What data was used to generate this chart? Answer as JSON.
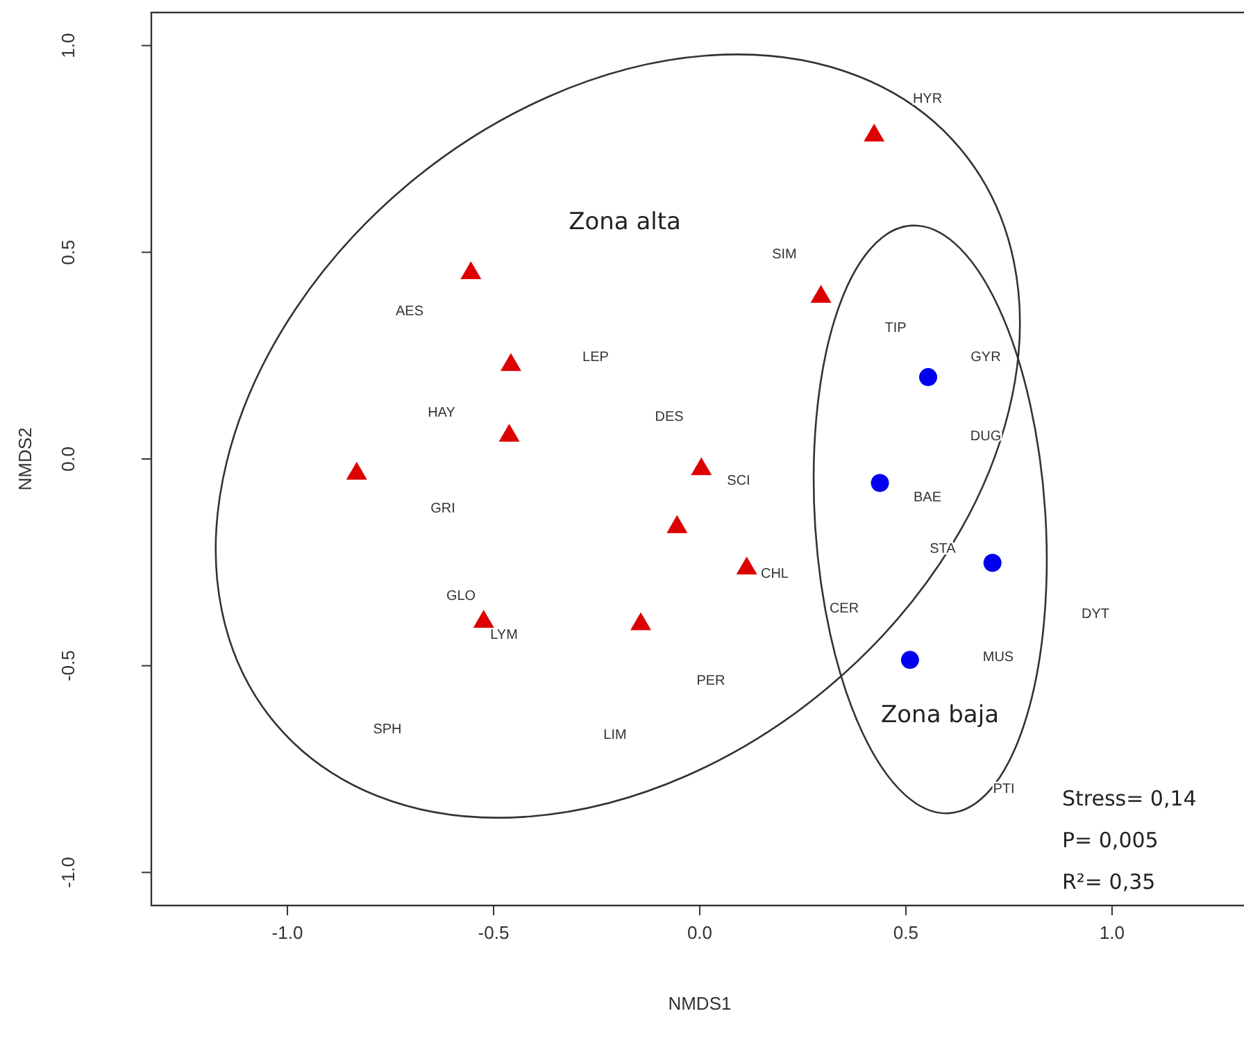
{
  "chart_data": {
    "type": "scatter",
    "xlabel": "NMDS1",
    "ylabel": "NMDS2",
    "xlim": [
      -1.33,
      1.32
    ],
    "ylim": [
      -1.08,
      1.08
    ],
    "xticks": [
      {
        "value": -1,
        "label": "-1.0"
      },
      {
        "value": -0.5,
        "label": "-0.5"
      },
      {
        "value": 0,
        "label": "0.0"
      },
      {
        "value": 0.5,
        "label": "0.5"
      },
      {
        "value": 1,
        "label": "1.0"
      }
    ],
    "yticks": [
      {
        "value": -1,
        "label": "-1.0"
      },
      {
        "value": -0.5,
        "label": "-0.5"
      },
      {
        "value": 0,
        "label": "0.0"
      },
      {
        "value": 0.5,
        "label": "0.5"
      },
      {
        "value": 1,
        "label": "1.0"
      }
    ],
    "series": [
      {
        "type": "scatter",
        "marker": "triangle",
        "color": "#dd0000",
        "x": [
          -0.555,
          -0.458,
          -0.462,
          -0.832,
          0.423,
          0.294,
          0.004,
          -0.055,
          0.114,
          -0.524,
          -0.143
        ],
        "values": [
          0.453,
          0.231,
          0.06,
          -0.032,
          0.786,
          0.396,
          -0.021,
          -0.161,
          -0.261,
          -0.39,
          -0.396
        ]
      },
      {
        "type": "scatter",
        "marker": "circle",
        "color": "#0000ee",
        "x": [
          0.554,
          0.437,
          0.71,
          0.51
        ],
        "values": [
          0.198,
          -0.058,
          -0.251,
          -0.486
        ]
      }
    ],
    "annotations": [
      "HYR",
      "SIM",
      "TIP",
      "GYR",
      "DUG",
      "AES",
      "LEP",
      "HAY",
      "DES",
      "GRI",
      "GLO",
      "LYM",
      "SPH",
      "LIM",
      "SCI",
      "BAE",
      "STA",
      "CHL",
      "CER",
      "DYT",
      "MUS",
      "PER",
      "PTI",
      "Zona alta",
      "Zona baja",
      "Stress= 0,14",
      "P= 0,005",
      "R²= 0,35"
    ]
  }
}
